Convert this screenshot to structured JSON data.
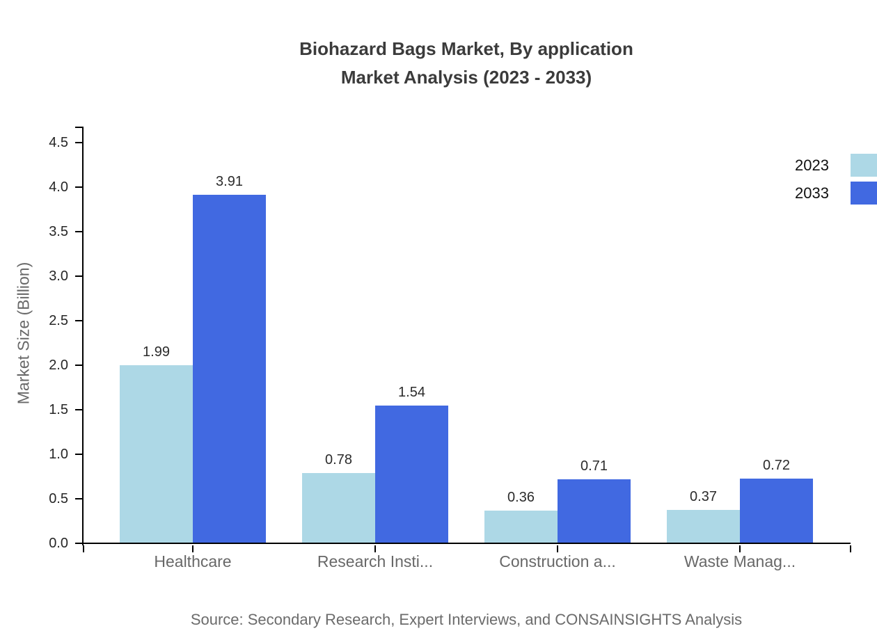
{
  "title": {
    "line1": "Biohazard Bags Market, By application",
    "line2": "Market Analysis (2023 - 2033)"
  },
  "chart_data": {
    "type": "bar",
    "title": "Biohazard Bags Market, By application Market Analysis (2023 - 2033)",
    "categories": [
      "Healthcare",
      "Research Insti...",
      "Construction a...",
      "Waste Manag..."
    ],
    "series": [
      {
        "name": "2023",
        "color": "#ADD8E6",
        "values": [
          1.99,
          0.78,
          0.36,
          0.37
        ]
      },
      {
        "name": "2033",
        "color": "#4169E1",
        "values": [
          3.91,
          1.54,
          0.71,
          0.72
        ]
      }
    ],
    "xlabel": "",
    "ylabel": "Market Size (Billion)",
    "ylim": [
      0,
      4.69
    ],
    "yticks": [
      0.0,
      0.5,
      1.0,
      1.5,
      2.0,
      2.5,
      3.0,
      3.5,
      4.0,
      4.5
    ],
    "grid": false,
    "value_labels": true,
    "legend_position": "top-right"
  },
  "source": "Source: Secondary Research, Expert Interviews, and CONSAINSIGHTS Analysis",
  "colors": {
    "series_2023": "#ADD8E6",
    "series_2033": "#4169E1",
    "axis": "#000000",
    "title_text": "#3b3b3b",
    "muted_text": "#686868",
    "tick_text": "#262626"
  }
}
